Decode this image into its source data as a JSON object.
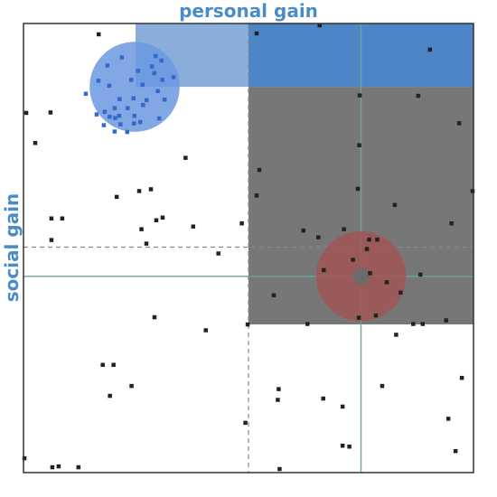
{
  "labels": {
    "x_axis": "personal gain",
    "y_axis": "social gain"
  },
  "colors": {
    "axis_label": "#4a8cc8",
    "blue_region": "#3a78c0",
    "gray_region": "#777777",
    "blue_circle": "#6b98e0",
    "red_circle": "#a05555",
    "guide_line": "#6aa79a",
    "dashed_line": "#888888",
    "point": "#222222"
  },
  "chart_data": {
    "type": "scatter",
    "xlim": [
      0,
      1
    ],
    "ylim": [
      0,
      1
    ],
    "axes": {
      "xlabel": "personal gain",
      "ylabel": "social gain"
    },
    "reference": {
      "x": 0.75,
      "y": 0.437
    },
    "dashed_reference": {
      "x": 0.5,
      "y": 0.502
    },
    "regions": [
      {
        "name": "light-blue",
        "x": [
          0.249,
          0.5
        ],
        "y": [
          0.859,
          1.0
        ]
      },
      {
        "name": "dark-blue",
        "x": [
          0.5,
          1.0
        ],
        "y": [
          0.859,
          1.0
        ]
      },
      {
        "name": "gray",
        "x": [
          0.5,
          1.0
        ],
        "y": [
          0.33,
          0.859
        ]
      }
    ],
    "circles": [
      {
        "name": "blue-cluster",
        "cx": 0.247,
        "cy": 0.859,
        "r": 0.1
      },
      {
        "name": "red-cluster",
        "cx": 0.75,
        "cy": 0.437,
        "r": 0.1
      }
    ],
    "points": [
      [
        0.167,
        0.976
      ],
      [
        0.06,
        0.802
      ],
      [
        0.006,
        0.801
      ],
      [
        0.026,
        0.734
      ],
      [
        0.36,
        0.701
      ],
      [
        0.207,
        0.614
      ],
      [
        0.257,
        0.627
      ],
      [
        0.283,
        0.631
      ],
      [
        0.062,
        0.566
      ],
      [
        0.086,
        0.566
      ],
      [
        0.295,
        0.562
      ],
      [
        0.377,
        0.548
      ],
      [
        0.485,
        0.555
      ],
      [
        0.062,
        0.518
      ],
      [
        0.273,
        0.51
      ],
      [
        0.433,
        0.488
      ],
      [
        0.291,
        0.346
      ],
      [
        0.405,
        0.317
      ],
      [
        0.498,
        0.33
      ],
      [
        0.176,
        0.24
      ],
      [
        0.2,
        0.24
      ],
      [
        0.24,
        0.193
      ],
      [
        0.192,
        0.171
      ],
      [
        0.493,
        0.111
      ],
      [
        0.002,
        0.032
      ],
      [
        0.064,
        0.012
      ],
      [
        0.078,
        0.014
      ],
      [
        0.122,
        0.012
      ],
      [
        0.567,
        0.186
      ],
      [
        0.565,
        0.162
      ],
      [
        0.666,
        0.165
      ],
      [
        0.709,
        0.147
      ],
      [
        0.709,
        0.06
      ],
      [
        0.724,
        0.058
      ],
      [
        0.944,
        0.12
      ],
      [
        0.96,
        0.048
      ],
      [
        0.974,
        0.211
      ],
      [
        0.797,
        0.193
      ],
      [
        0.828,
        0.307
      ],
      [
        0.866,
        0.331
      ],
      [
        0.887,
        0.331
      ],
      [
        0.939,
        0.339
      ],
      [
        0.556,
        0.395
      ],
      [
        0.631,
        0.331
      ],
      [
        0.882,
        0.441
      ],
      [
        0.951,
        0.555
      ],
      [
        0.998,
        0.627
      ],
      [
        0.825,
        0.596
      ],
      [
        0.743,
        0.632
      ],
      [
        0.746,
        0.729
      ],
      [
        0.524,
        0.674
      ],
      [
        0.518,
        0.617
      ],
      [
        0.747,
        0.84
      ],
      [
        0.877,
        0.839
      ],
      [
        0.968,
        0.778
      ],
      [
        0.655,
        0.524
      ],
      [
        0.712,
        0.542
      ],
      [
        0.622,
        0.539
      ],
      [
        0.569,
        0.008
      ],
      [
        0.262,
        0.542
      ],
      [
        0.309,
        0.568
      ],
      [
        0.518,
        0.978
      ],
      [
        0.658,
        0.996
      ],
      [
        0.903,
        0.942
      ],
      [
        0.768,
        0.519
      ],
      [
        0.786,
        0.519
      ],
      [
        0.77,
        0.444
      ],
      [
        0.667,
        0.451
      ],
      [
        0.807,
        0.424
      ],
      [
        0.838,
        0.401
      ],
      [
        0.745,
        0.345
      ],
      [
        0.783,
        0.35
      ],
      [
        0.763,
        0.498
      ],
      [
        0.732,
        0.474
      ]
    ],
    "blue_points": [
      [
        0.186,
        0.907
      ],
      [
        0.218,
        0.925
      ],
      [
        0.254,
        0.895
      ],
      [
        0.29,
        0.89
      ],
      [
        0.306,
        0.918
      ],
      [
        0.308,
        0.875
      ],
      [
        0.239,
        0.875
      ],
      [
        0.166,
        0.873
      ],
      [
        0.138,
        0.844
      ],
      [
        0.19,
        0.862
      ],
      [
        0.213,
        0.832
      ],
      [
        0.244,
        0.834
      ],
      [
        0.298,
        0.85
      ],
      [
        0.313,
        0.831
      ],
      [
        0.265,
        0.819
      ],
      [
        0.231,
        0.812
      ],
      [
        0.202,
        0.812
      ],
      [
        0.18,
        0.804
      ],
      [
        0.162,
        0.798
      ],
      [
        0.191,
        0.793
      ],
      [
        0.246,
        0.795
      ],
      [
        0.259,
        0.781
      ],
      [
        0.212,
        0.795
      ],
      [
        0.202,
        0.76
      ],
      [
        0.178,
        0.774
      ],
      [
        0.203,
        0.79
      ],
      [
        0.215,
        0.776
      ],
      [
        0.23,
        0.759
      ],
      [
        0.301,
        0.789
      ],
      [
        0.333,
        0.881
      ],
      [
        0.285,
        0.905
      ],
      [
        0.264,
        0.864
      ],
      [
        0.293,
        0.928
      ],
      [
        0.273,
        0.83
      ],
      [
        0.245,
        0.778
      ]
    ]
  }
}
